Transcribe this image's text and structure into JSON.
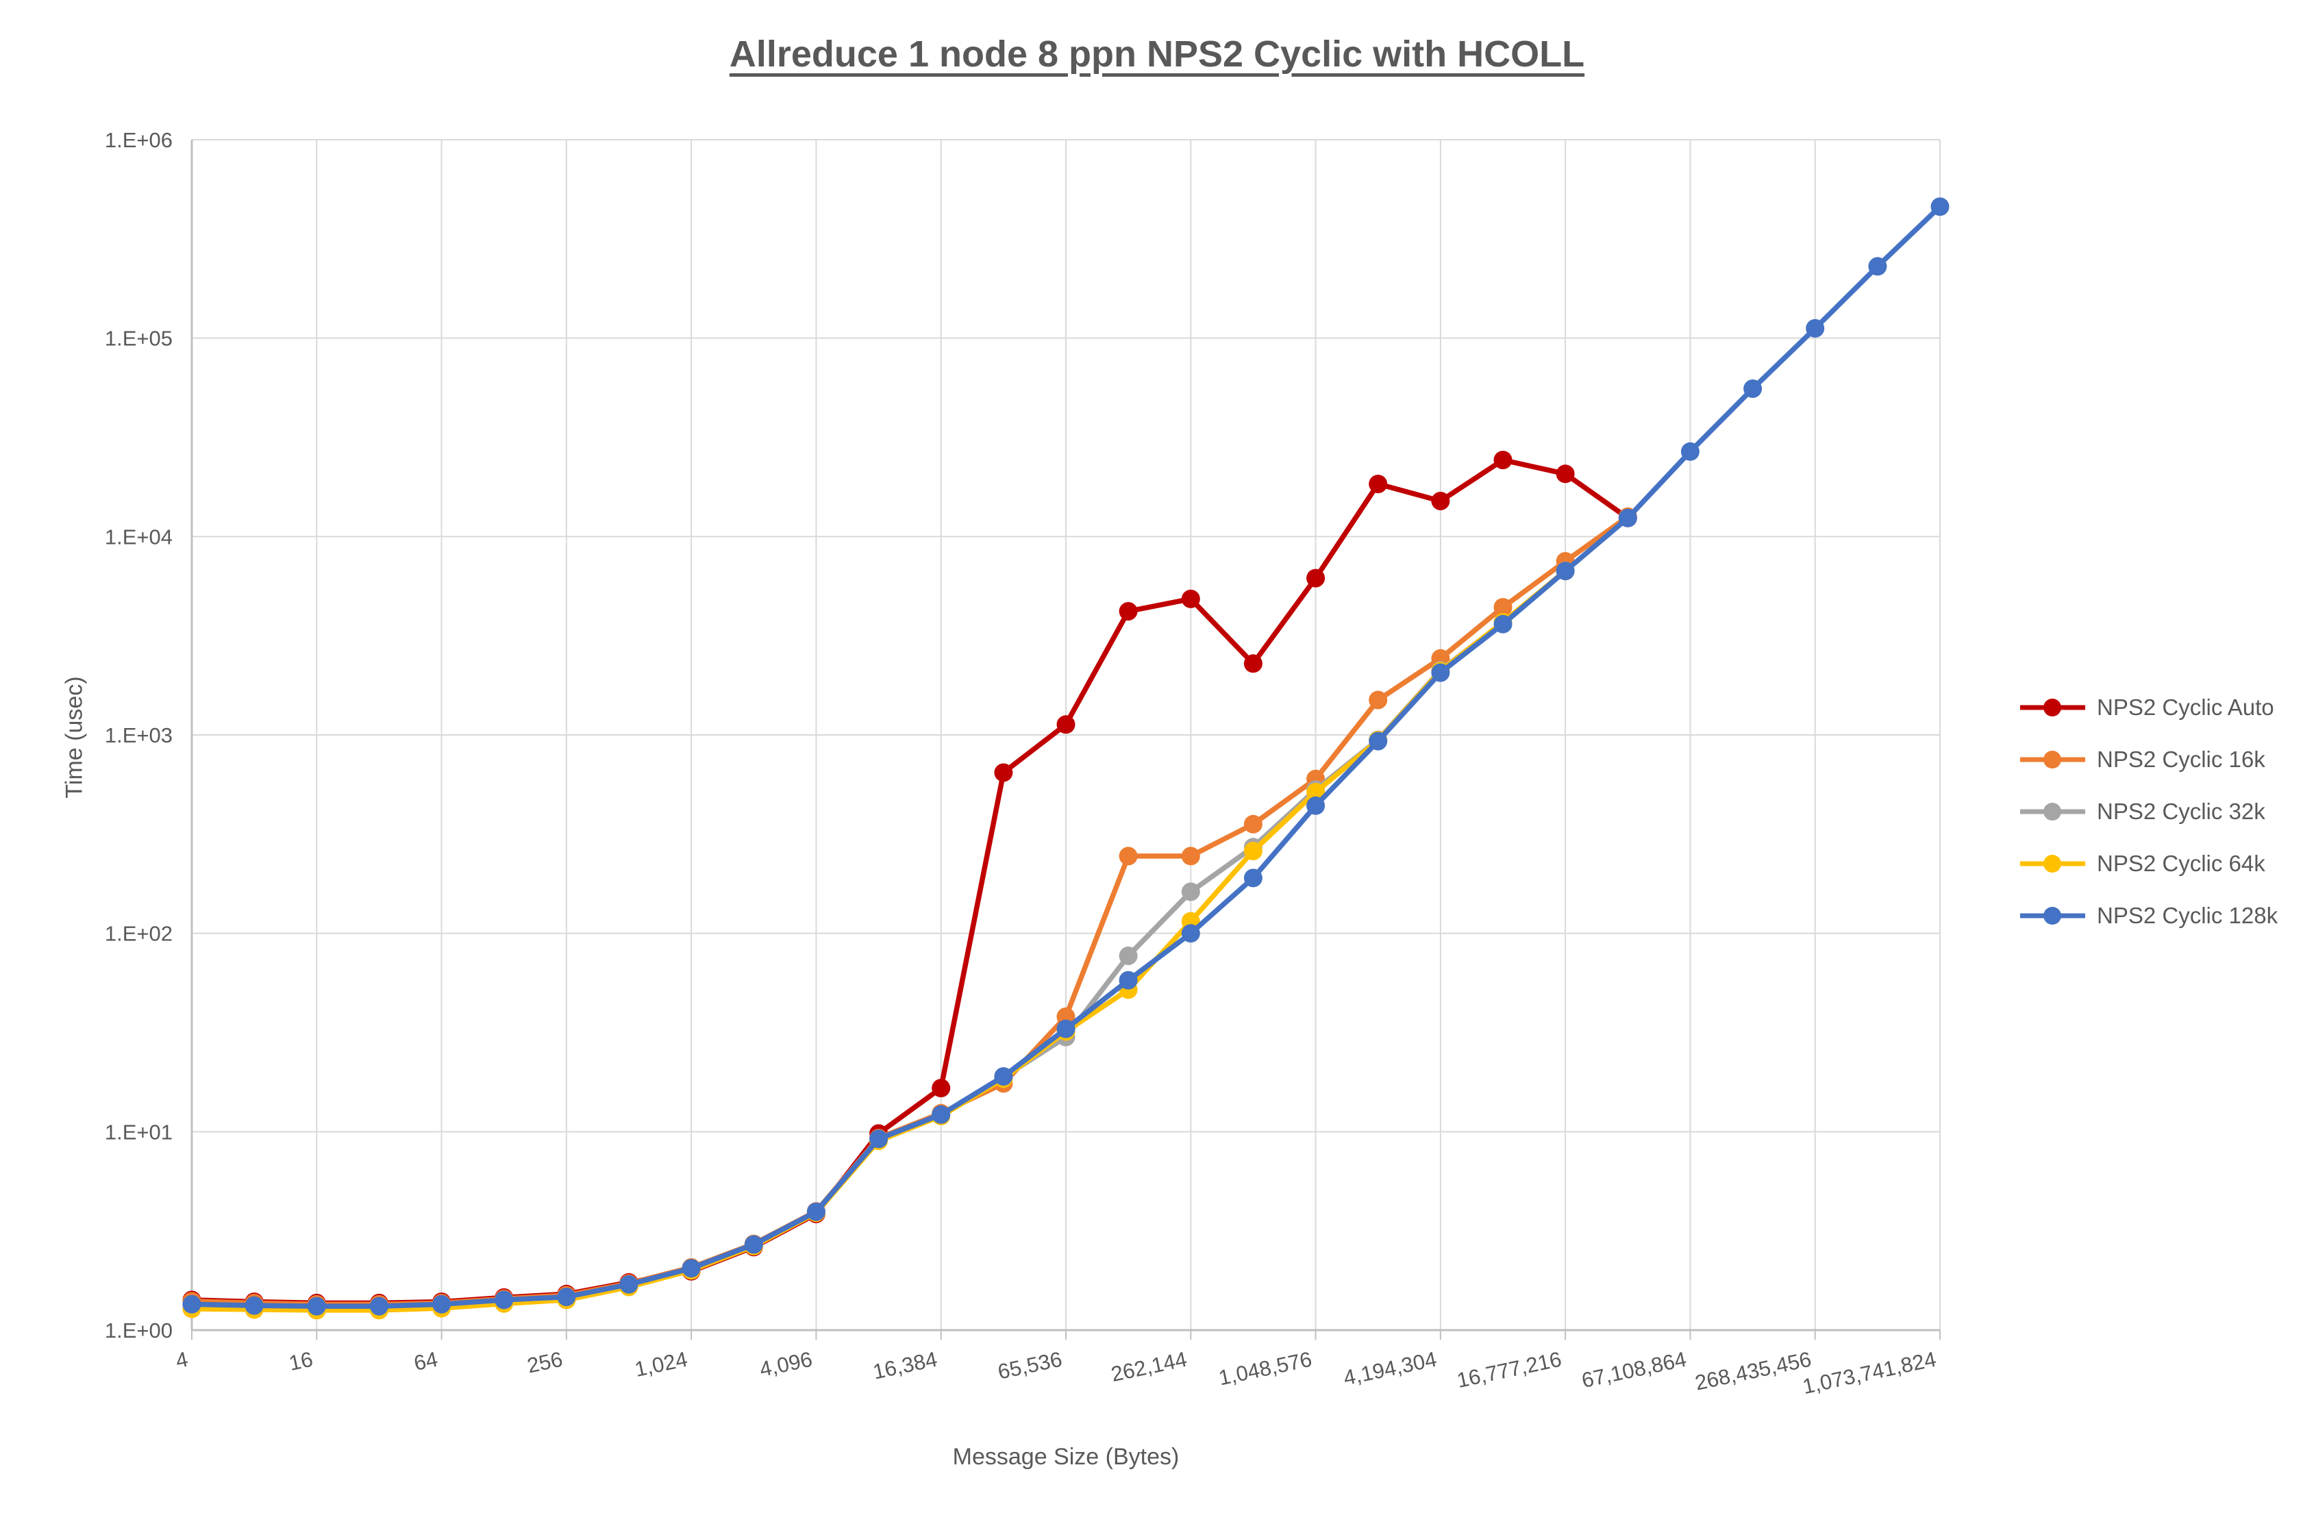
{
  "chart_data": {
    "type": "line",
    "title": "Allreduce 1 node 8 ppn NPS2 Cyclic with HCOLL",
    "xlabel": "Message Size (Bytes)",
    "ylabel": "Time (usec)",
    "x_scale": "log2",
    "y_scale": "log10",
    "xlim": [
      4,
      1073741824
    ],
    "ylim": [
      1,
      1000000
    ],
    "grid": true,
    "legend_position": "right",
    "x_tick_labels": [
      "4",
      "16",
      "64",
      "256",
      "1,024",
      "4,096",
      "16,384",
      "65,536",
      "262,144",
      "1,048,576",
      "4,194,304",
      "16,777,216",
      "67,108,864",
      "268,435,456",
      "1,073,741,824"
    ],
    "y_tick_labels": [
      "1.E+00",
      "1.E+01",
      "1.E+02",
      "1.E+03",
      "1.E+04",
      "1.E+05",
      "1.E+06"
    ],
    "x": [
      4,
      8,
      16,
      32,
      64,
      128,
      256,
      512,
      1024,
      2048,
      4096,
      8192,
      16384,
      32768,
      65536,
      131072,
      262144,
      524288,
      1048576,
      2097152,
      4194304,
      8388608,
      16777216,
      33554432,
      67108864,
      134217728,
      268435456,
      536870912,
      1073741824
    ],
    "series": [
      {
        "name": "NPS2 Cyclic Auto",
        "color": "#C00000",
        "values": [
          1.42,
          1.39,
          1.37,
          1.37,
          1.39,
          1.46,
          1.52,
          1.74,
          1.98,
          2.62,
          3.85,
          9.8,
          16.6,
          646,
          1128,
          4200,
          4850,
          2290,
          6170,
          18400,
          15100,
          24300,
          20700,
          12400,
          null,
          null,
          null,
          null,
          null
        ]
      },
      {
        "name": "NPS2 Cyclic 16k",
        "color": "#ED7D31",
        "values": [
          1.4,
          1.37,
          1.35,
          1.35,
          1.37,
          1.44,
          1.5,
          1.72,
          2.07,
          2.72,
          3.97,
          9.3,
          12.4,
          17.5,
          38,
          245,
          245,
          355,
          600,
          1500,
          2430,
          4400,
          7500,
          12600,
          null,
          null,
          null,
          null,
          null
        ]
      },
      {
        "name": "NPS2 Cyclic 32k",
        "color": "#A5A5A5",
        "values": [
          1.33,
          1.31,
          1.3,
          1.3,
          1.33,
          1.4,
          1.45,
          1.68,
          2.03,
          2.68,
          3.92,
          9.1,
          12.1,
          18.8,
          30,
          77,
          162,
          272,
          530,
          945,
          2120,
          3680,
          6720,
          null,
          null,
          null,
          null,
          null,
          null
        ]
      },
      {
        "name": "NPS2 Cyclic 64k",
        "color": "#FFC000",
        "values": [
          1.28,
          1.27,
          1.26,
          1.26,
          1.29,
          1.36,
          1.42,
          1.65,
          2.0,
          2.65,
          3.9,
          9.0,
          12.0,
          18.5,
          32,
          52,
          115,
          260,
          515,
          940,
          2100,
          3700,
          6700,
          null,
          null,
          null,
          null,
          null,
          null
        ]
      },
      {
        "name": "NPS2 Cyclic 128k",
        "color": "#4472C4",
        "values": [
          1.35,
          1.33,
          1.32,
          1.32,
          1.35,
          1.42,
          1.47,
          1.7,
          2.05,
          2.7,
          3.95,
          9.2,
          12.2,
          19,
          33,
          58,
          100,
          190,
          440,
          930,
          2060,
          3620,
          6700,
          12400,
          26800,
          55600,
          112000,
          230000,
          460000
        ]
      }
    ],
    "style": {
      "grid_color": "#D9D9D9",
      "axis_color": "#BFBFBF",
      "text_color": "#595959",
      "background": "#FFFFFF"
    }
  }
}
